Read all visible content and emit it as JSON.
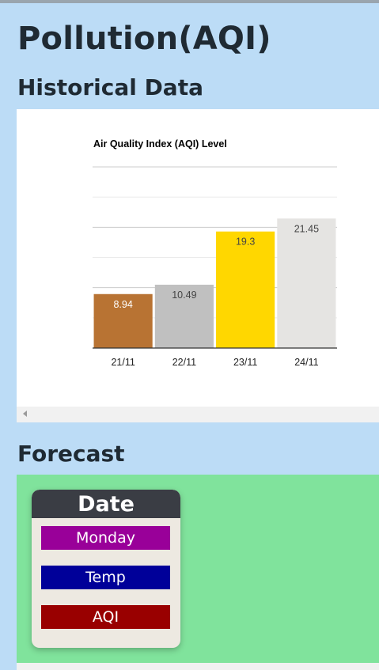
{
  "page": {
    "title": "Pollution(AQI)",
    "historical_heading": "Historical Data",
    "forecast_heading": "Forecast"
  },
  "chart_data": {
    "type": "bar",
    "title": "Air Quality Index (AQI) Level",
    "categories": [
      "21/11",
      "22/11",
      "23/11",
      "24/11"
    ],
    "values": [
      8.94,
      10.49,
      19.3,
      21.45
    ],
    "value_labels": [
      "8.94",
      "10.49",
      "19.3",
      "21.45"
    ],
    "bar_colors": [
      "#b87333",
      "#c0c0c0",
      "#ffd700",
      "#e5e4e2"
    ],
    "label_colors": [
      "#ffffff",
      "#444444",
      "#444444",
      "#444444"
    ],
    "ylim": [
      0,
      30
    ],
    "grid": true,
    "xlabel": "",
    "ylabel": ""
  },
  "forecast": {
    "card_header": "Date",
    "day_label": "Monday",
    "temp_label": "Temp",
    "aqi_label": "AQI",
    "colors": {
      "day": "#990099",
      "temp": "#000099",
      "aqi": "#990000"
    }
  }
}
